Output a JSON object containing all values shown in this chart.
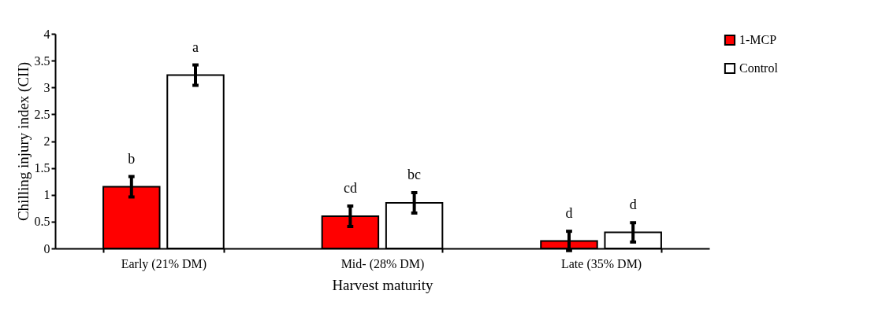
{
  "chart_data": {
    "type": "bar",
    "xlabel": "Harvest maturity",
    "ylabel": "Chilling injury index (CII)",
    "categories": [
      "Early (21% DM)",
      "Mid- (28% DM)",
      "Late (35% DM)"
    ],
    "series": [
      {
        "name": "1-MCP",
        "color": "#ff0000",
        "values": [
          1.15,
          0.6,
          0.14
        ],
        "errors": [
          0.19,
          0.19,
          0.18
        ],
        "value_labels": [
          "b",
          "cd",
          "d"
        ]
      },
      {
        "name": "Control",
        "color": "#ffffff",
        "values": [
          3.23,
          0.85,
          0.3
        ],
        "errors": [
          0.19,
          0.19,
          0.18
        ],
        "value_labels": [
          "a",
          "bc",
          "d"
        ]
      }
    ],
    "ylim": [
      0,
      4
    ],
    "yticks": [
      0,
      0.5,
      1,
      1.5,
      2,
      2.5,
      3,
      3.5,
      4
    ],
    "grid": false,
    "legend": "right"
  }
}
